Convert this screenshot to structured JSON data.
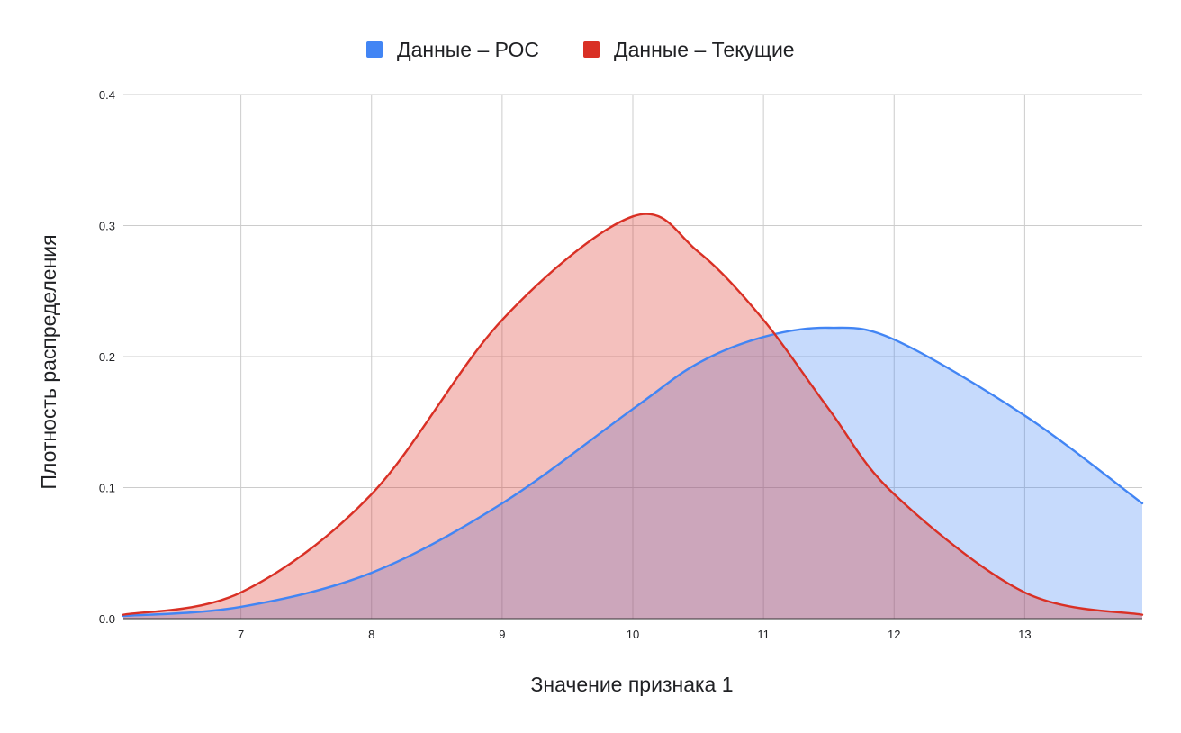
{
  "chart_data": {
    "type": "area",
    "title": "",
    "xlabel": "Значение признака 1",
    "ylabel": "Плотность распределения",
    "xlim": [
      6.1,
      13.9
    ],
    "ylim": [
      0,
      0.4
    ],
    "x_ticks": [
      "7",
      "8",
      "9",
      "10",
      "11",
      "12",
      "13"
    ],
    "y_ticks": [
      "0.0",
      "0.1",
      "0.2",
      "0.3",
      "0.4"
    ],
    "grid": true,
    "legend_position": "top",
    "x": [
      6.1,
      7,
      8,
      9,
      10,
      10.5,
      11,
      11.5,
      12,
      13,
      13.9
    ],
    "series": [
      {
        "name": "Данные – РОС",
        "color": "#4285f4",
        "fill": "#c6d8f7",
        "values": [
          0.002,
          0.009,
          0.035,
          0.088,
          0.16,
          0.195,
          0.215,
          0.222,
          0.213,
          0.155,
          0.088
        ]
      },
      {
        "name": "Данные – Текущие",
        "color": "#d93025",
        "fill": "#f6c3c0",
        "values": [
          0.003,
          0.02,
          0.095,
          0.228,
          0.307,
          0.28,
          0.228,
          0.16,
          0.095,
          0.02,
          0.003
        ]
      }
    ]
  }
}
